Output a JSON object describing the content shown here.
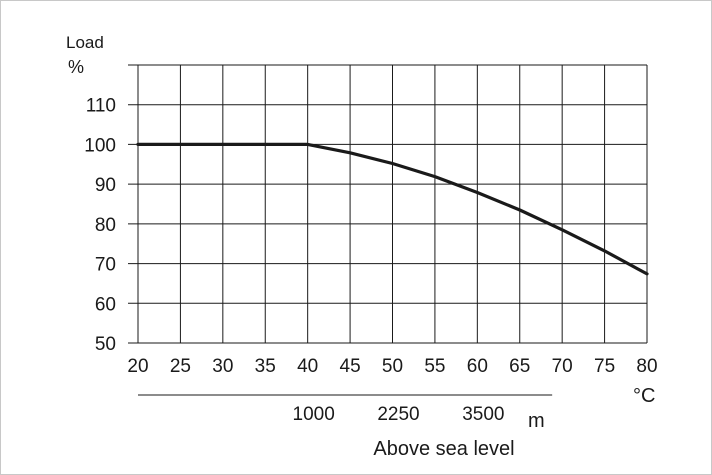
{
  "chart_data": {
    "type": "line",
    "ylabel": "Load",
    "yunit": "%",
    "xunit": "°C",
    "xlim": [
      20,
      80
    ],
    "ylim": [
      50,
      120
    ],
    "xticks": [
      20,
      25,
      30,
      35,
      40,
      45,
      50,
      55,
      60,
      65,
      70,
      75,
      80
    ],
    "yticks": [
      50,
      60,
      70,
      80,
      90,
      100,
      110
    ],
    "grid": true,
    "series": [
      {
        "x": [
          20,
          40,
          45,
          50,
          55,
          60,
          65,
          70,
          75,
          80
        ],
        "y": [
          100,
          100,
          97.9,
          95.2,
          91.9,
          87.9,
          83.5,
          78.5,
          73.2,
          67.4
        ]
      }
    ],
    "altitude_axis": {
      "unit": "m",
      "label": "Above sea level",
      "ticks": [
        {
          "x": 40,
          "label": "1000"
        },
        {
          "x": 50,
          "label": "2250"
        },
        {
          "x": 60,
          "label": "3500"
        }
      ]
    },
    "colors": {
      "line": "#1a1a1a",
      "grid": "#1a1a1a"
    }
  }
}
